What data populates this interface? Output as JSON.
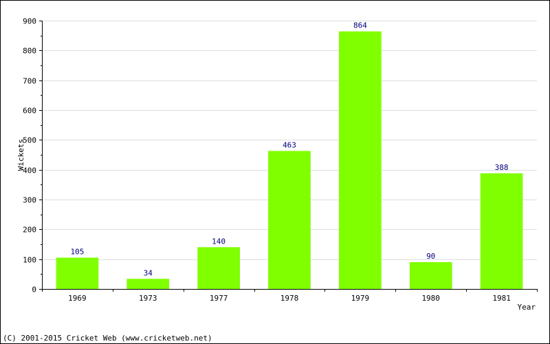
{
  "chart_data": {
    "type": "bar",
    "categories": [
      "1969",
      "1973",
      "1977",
      "1978",
      "1979",
      "1980",
      "1981"
    ],
    "values": [
      105,
      34,
      140,
      463,
      864,
      90,
      388
    ],
    "title": "",
    "xlabel": "Year",
    "ylabel": "Wickets",
    "ylim": [
      0,
      900
    ],
    "yticks": [
      0,
      100,
      200,
      300,
      400,
      500,
      600,
      700,
      800,
      900
    ],
    "grid": true,
    "data_labels": true,
    "colors": {
      "bar": "#80ff00",
      "grid": "#dddddd",
      "axis": "#000000",
      "value_label": "#000080"
    }
  },
  "footer": {
    "copyright": "(C) 2001-2015 Cricket Web (www.cricketweb.net)"
  }
}
